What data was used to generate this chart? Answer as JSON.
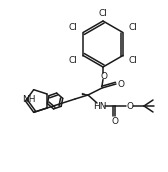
{
  "bg_color": "#ffffff",
  "line_color": "#1a1a1a",
  "line_width": 1.1,
  "font_size": 6.5,
  "figsize": [
    1.68,
    1.72
  ],
  "dpi": 100,
  "xlim": [
    0,
    168
  ],
  "ylim": [
    0,
    172
  ]
}
